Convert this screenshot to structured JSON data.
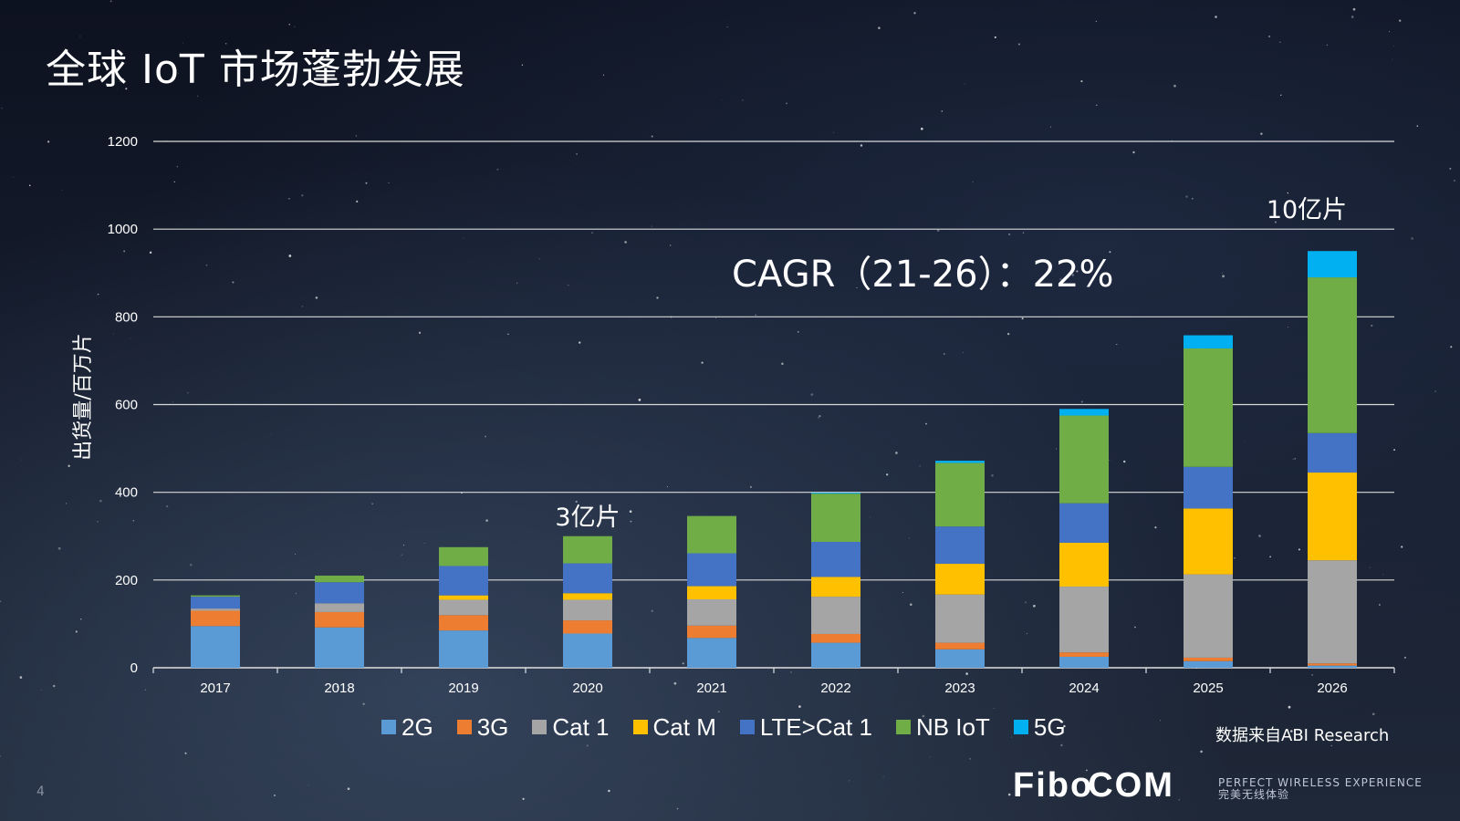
{
  "slide": {
    "title": "全球 IoT 市场蓬勃发展",
    "page_number": "4",
    "source_note": "数据来自ABI Research",
    "logo_text": "FiboCOM",
    "tagline_en": "PERFECT WIRELESS EXPERIENCE",
    "tagline_cn": "完美无线体验"
  },
  "colors": {
    "2G": "#5b9bd5",
    "3G": "#ed7d31",
    "Cat 1": "#a5a5a5",
    "Cat M": "#ffc000",
    "LTE>Cat 1": "#4472c4",
    "NB IoT": "#70ad47",
    "5G": "#00b0f0"
  },
  "chart_data": {
    "type": "bar",
    "stacked": true,
    "ylabel": "出货量/百万片",
    "ylim": [
      0,
      1200
    ],
    "yticks": [
      0,
      200,
      400,
      600,
      800,
      1000,
      1200
    ],
    "grid": true,
    "legend_position": "bottom",
    "categories": [
      "2017",
      "2018",
      "2019",
      "2020",
      "2021",
      "2022",
      "2023",
      "2024",
      "2025",
      "2026"
    ],
    "series": [
      {
        "name": "2G",
        "values": [
          95,
          92,
          85,
          78,
          68,
          57,
          42,
          25,
          15,
          5
        ]
      },
      {
        "name": "3G",
        "values": [
          35,
          35,
          35,
          30,
          28,
          20,
          15,
          10,
          8,
          5
        ]
      },
      {
        "name": "Cat 1",
        "values": [
          5,
          20,
          35,
          47,
          60,
          85,
          110,
          150,
          190,
          235
        ]
      },
      {
        "name": "Cat M",
        "values": [
          0,
          0,
          10,
          15,
          30,
          45,
          70,
          100,
          150,
          200
        ]
      },
      {
        "name": "LTE>Cat 1",
        "values": [
          27,
          48,
          67,
          68,
          75,
          80,
          85,
          90,
          95,
          90
        ]
      },
      {
        "name": "NB IoT",
        "values": [
          3,
          15,
          43,
          62,
          85,
          110,
          145,
          200,
          270,
          355
        ]
      },
      {
        "name": "5G",
        "values": [
          0,
          0,
          0,
          0,
          0,
          2,
          5,
          15,
          30,
          60
        ]
      }
    ],
    "annotations": {
      "cagr": "CAGR（21-26）：22%",
      "label_2020": "3亿片",
      "label_2026": "10亿片"
    }
  }
}
